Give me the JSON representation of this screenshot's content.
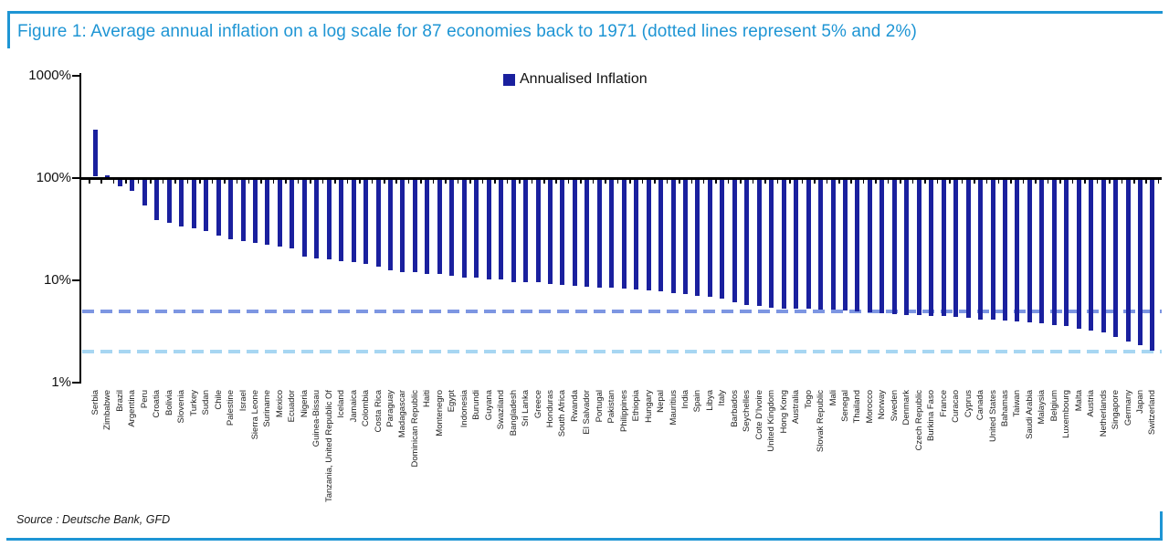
{
  "figure": {
    "title": "Figure 1: Average annual inflation on a log scale for 87 economies back to 1971 (dotted lines represent 5% and 2%)",
    "source": "Source : Deutsche Bank, GFD",
    "accent_color": "#1E95D4"
  },
  "chart_data": {
    "type": "bar",
    "scale": "log",
    "title": "Average annual inflation on a log scale for 87 economies back to 1971",
    "legend": {
      "label": "Annualised Inflation",
      "position": "top-center"
    },
    "bar_color": "#1A209E",
    "baseline_value": 100,
    "grid": false,
    "y_axis": {
      "unit": "%",
      "ticks": [
        "1000%",
        "100%",
        "10%",
        "1%"
      ],
      "tick_values": [
        1000,
        100,
        10,
        1
      ],
      "ylim": [
        1,
        1000
      ]
    },
    "reference_lines": [
      {
        "value": 5,
        "label": "5%",
        "color": "#7D96E2"
      },
      {
        "value": 2,
        "label": "2%",
        "color": "#A7D6F2"
      }
    ],
    "categories": [
      "Serbia",
      "Zimbabwe",
      "Brazil",
      "Argentina",
      "Peru",
      "Croatia",
      "Bolivia",
      "Slovenia",
      "Turkey",
      "Sudan",
      "Chile",
      "Palestine",
      "Israel",
      "Sierra Leone",
      "Suriname",
      "Mexico",
      "Ecuador",
      "Nigeria",
      "Guinea-Bissau",
      "Tanzania, United Republic Of",
      "Iceland",
      "Jamaica",
      "Colombia",
      "Costa Rica",
      "Paraguay",
      "Madagascar",
      "Dominican Republic",
      "Haiti",
      "Montenegro",
      "Egypt",
      "Indonesia",
      "Burundi",
      "Guyana",
      "Swaziland",
      "Bangladesh",
      "Sri Lanka",
      "Greece",
      "Honduras",
      "South Africa",
      "Rwanda",
      "El Salvador",
      "Portugal",
      "Pakistan",
      "Philippines",
      "Ethiopia",
      "Hungary",
      "Nepal",
      "Mauritius",
      "India",
      "Spain",
      "Libya",
      "Italy",
      "Barbados",
      "Seychelles",
      "Cote D'Ivoire",
      "United Kingdom",
      "Hong Kong",
      "Australia",
      "Togo",
      "Slovak Republic",
      "Mali",
      "Senegal",
      "Thailand",
      "Morocco",
      "Norway",
      "Sweden",
      "Denmark",
      "Czech Republic",
      "Burkina Faso",
      "France",
      "Curacao",
      "Cyprus",
      "Canada",
      "United States",
      "Bahamas",
      "Taiwan",
      "Saudi Arabia",
      "Malaysia",
      "Belgium",
      "Luxembourg",
      "Malta",
      "Austria",
      "Netherlands",
      "Singapore",
      "Germany",
      "Japan",
      "Switzerland"
    ],
    "values": [
      290,
      100,
      85,
      77,
      56,
      40,
      38,
      35,
      33,
      31,
      28,
      26,
      25,
      24,
      23,
      22,
      21,
      17.5,
      17,
      16.5,
      16,
      15.5,
      15,
      14,
      13,
      12.5,
      12.5,
      12,
      12,
      11.5,
      11,
      11,
      10.5,
      10.5,
      10,
      10,
      9.8,
      9.5,
      9.3,
      9.2,
      9,
      8.8,
      8.7,
      8.5,
      8.4,
      8.2,
      8,
      7.8,
      7.6,
      7.3,
      7.1,
      6.8,
      6.3,
      5.9,
      5.8,
      5.6,
      5.5,
      5.5,
      5.4,
      5.3,
      5.3,
      5.2,
      5.1,
      5,
      4.9,
      4.8,
      4.7,
      4.7,
      4.6,
      4.6,
      4.5,
      4.4,
      4.3,
      4.3,
      4.2,
      4.1,
      4,
      3.9,
      3.8,
      3.7,
      3.5,
      3.3,
      3.2,
      2.9,
      2.6,
      2.4,
      2.1
    ],
    "values_note": "values estimated from log-scale bar extents; bars hang from 100% baseline"
  }
}
